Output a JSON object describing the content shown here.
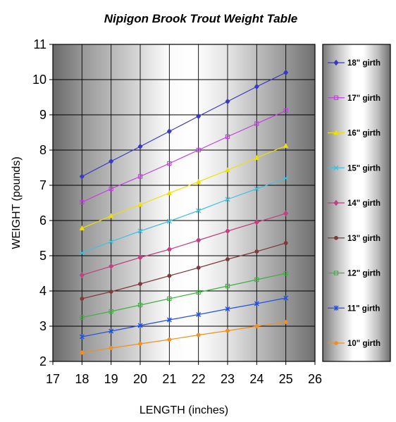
{
  "chart_data": {
    "type": "line",
    "title": "Nipigon Brook Trout Weight Table",
    "xlabel": "LENGTH (inches)",
    "ylabel": "WEIGHT (pounds)",
    "xlim": [
      17,
      26
    ],
    "ylim": [
      2,
      11
    ],
    "x_ticks": [
      "17",
      "18",
      "19",
      "20",
      "21",
      "22",
      "23",
      "24",
      "25",
      "26"
    ],
    "y_ticks": [
      "2",
      "3",
      "4",
      "5",
      "6",
      "7",
      "8",
      "9",
      "10",
      "11"
    ],
    "grid": true,
    "legend_position": "right",
    "x": [
      18,
      19,
      20,
      21,
      22,
      23,
      24,
      25
    ],
    "series": [
      {
        "name": "18\" girth",
        "color": "#3a3ac0",
        "marker": "diamond",
        "values": [
          7.25,
          7.68,
          8.1,
          8.53,
          8.96,
          9.38,
          9.8,
          10.2
        ]
      },
      {
        "name": "17\" girth",
        "color": "#c040e0",
        "marker": "square",
        "values": [
          6.52,
          6.9,
          7.25,
          7.62,
          8.0,
          8.38,
          8.75,
          9.12
        ]
      },
      {
        "name": "16\" girth",
        "color": "#f0e000",
        "marker": "triangle",
        "values": [
          5.78,
          6.13,
          6.45,
          6.78,
          7.1,
          7.43,
          7.78,
          8.12
        ]
      },
      {
        "name": "15\" girth",
        "color": "#40c0e0",
        "marker": "x",
        "values": [
          5.08,
          5.4,
          5.7,
          5.98,
          6.28,
          6.6,
          6.9,
          7.2
        ]
      },
      {
        "name": "14\" girth",
        "color": "#c04080",
        "marker": "diamond",
        "values": [
          4.45,
          4.7,
          4.95,
          5.18,
          5.44,
          5.7,
          5.95,
          6.2
        ]
      },
      {
        "name": "13\" girth",
        "color": "#803838",
        "marker": "circle",
        "values": [
          3.78,
          3.98,
          4.2,
          4.43,
          4.66,
          4.9,
          5.12,
          5.36
        ]
      },
      {
        "name": "12\" girth",
        "color": "#40b040",
        "marker": "square",
        "values": [
          3.25,
          3.42,
          3.6,
          3.78,
          3.96,
          4.14,
          4.32,
          4.5
        ]
      },
      {
        "name": "11\" girth",
        "color": "#2050e0",
        "marker": "star",
        "values": [
          2.7,
          2.86,
          3.02,
          3.18,
          3.33,
          3.49,
          3.64,
          3.8
        ]
      },
      {
        "name": "10\" girth",
        "color": "#f09020",
        "marker": "circle",
        "values": [
          2.25,
          2.38,
          2.5,
          2.62,
          2.75,
          2.87,
          3.0,
          3.12
        ]
      }
    ]
  }
}
